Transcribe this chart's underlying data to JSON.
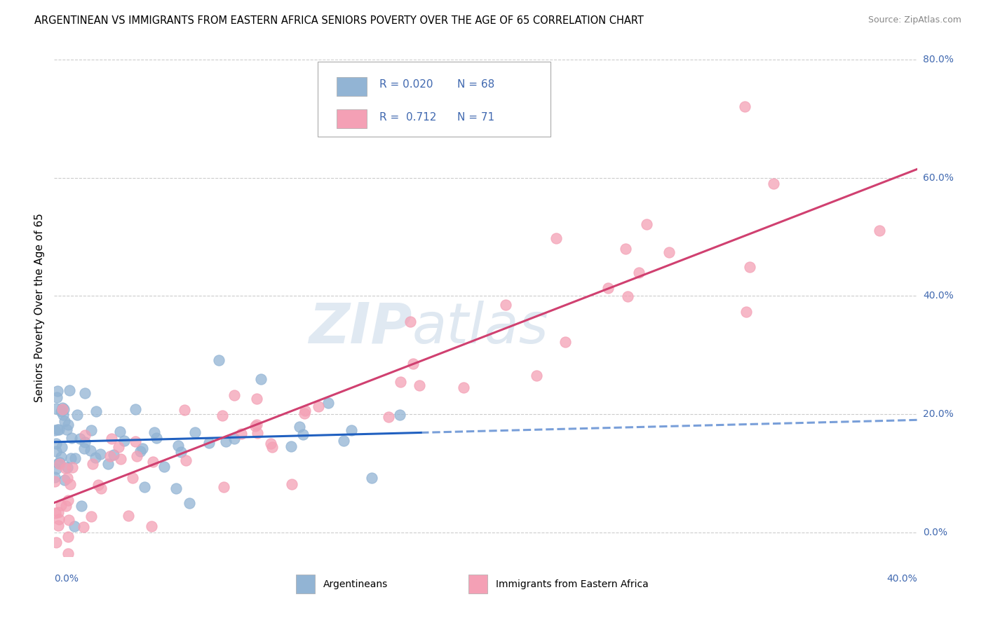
{
  "title": "ARGENTINEAN VS IMMIGRANTS FROM EASTERN AFRICA SENIORS POVERTY OVER THE AGE OF 65 CORRELATION CHART",
  "source": "Source: ZipAtlas.com",
  "ylabel": "Seniors Poverty Over the Age of 65",
  "ylabel_right_ticks": [
    "0.0%",
    "20.0%",
    "40.0%",
    "60.0%",
    "80.0%"
  ],
  "ylabel_right_vals": [
    0.0,
    0.2,
    0.4,
    0.6,
    0.8
  ],
  "blue_color": "#92b4d4",
  "pink_color": "#f4a0b5",
  "blue_line_color": "#2060c0",
  "pink_line_color": "#d04070",
  "text_color": "#4169b0",
  "watermark_zip": "ZIP",
  "watermark_atlas": "atlas",
  "xlim": [
    0.0,
    0.4
  ],
  "ylim": [
    -0.04,
    0.8
  ]
}
